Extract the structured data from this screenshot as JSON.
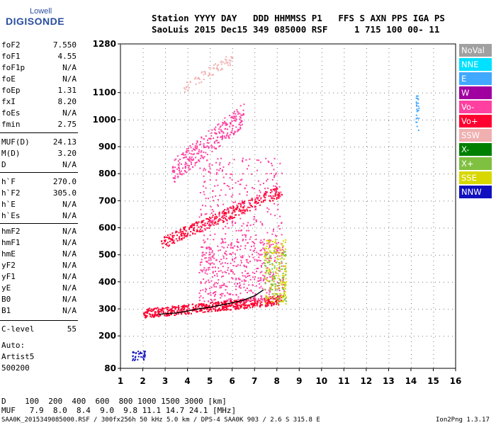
{
  "logo": {
    "top": "Lowell",
    "main": "DIGISONDE"
  },
  "header": {
    "line1": "Station YYYY DAY   DDD HHMMSS P1   FFS S AXN PPS IGA PS",
    "line2": "SaoLuis 2015 Dec15 349 085000 RSF     1 715 100 00- 11"
  },
  "params": [
    {
      "label": "foF2",
      "value": "7.550"
    },
    {
      "label": "foF1",
      "value": "4.55"
    },
    {
      "label": "foF1p",
      "value": "N/A"
    },
    {
      "label": "foE",
      "value": "N/A"
    },
    {
      "label": "foEp",
      "value": "1.31"
    },
    {
      "label": "fxI",
      "value": "8.20"
    },
    {
      "label": "foEs",
      "value": "N/A"
    },
    {
      "label": "fmin",
      "value": "2.75"
    },
    {
      "label": "MUF(D)",
      "value": "24.13"
    },
    {
      "label": "M(D)",
      "value": "3.20"
    },
    {
      "label": "D",
      "value": "N/A"
    },
    {
      "label": "h`F",
      "value": "270.0"
    },
    {
      "label": "h`F2",
      "value": "305.0"
    },
    {
      "label": "h`E",
      "value": "N/A"
    },
    {
      "label": "h`Es",
      "value": "N/A"
    },
    {
      "label": "hmF2",
      "value": "N/A"
    },
    {
      "label": "hmF1",
      "value": "N/A"
    },
    {
      "label": "hmE",
      "value": "N/A"
    },
    {
      "label": "yF2",
      "value": "N/A"
    },
    {
      "label": "yF1",
      "value": "N/A"
    },
    {
      "label": "yE",
      "value": "N/A"
    },
    {
      "label": "B0",
      "value": "N/A"
    },
    {
      "label": "B1",
      "value": "N/A"
    },
    {
      "label": "C-level",
      "value": "55"
    }
  ],
  "tail": {
    "auto": "Auto:",
    "artist": "Artist5",
    "version": "500200"
  },
  "legend": [
    {
      "name": "NoVal",
      "color": "#a0a0a0"
    },
    {
      "name": "NNE",
      "color": "#00e0ff"
    },
    {
      "name": "E",
      "color": "#40a8ff"
    },
    {
      "name": "W",
      "color": "#a000a0"
    },
    {
      "name": "Vo-",
      "color": "#ff40a0"
    },
    {
      "name": "Vo+",
      "color": "#ff0030"
    },
    {
      "name": "SSW",
      "color": "#f0b0b0"
    },
    {
      "name": "X-",
      "color": "#008000"
    },
    {
      "name": "X+",
      "color": "#80c040"
    },
    {
      "name": "SSE",
      "color": "#d8d800"
    },
    {
      "name": "NNW",
      "color": "#1010c0"
    }
  ],
  "bottom": {
    "d_row": "D    100  200  400  600  800 1000 1500 3000 [km]",
    "muf_row": "MUF   7.9  8.0  8.4  9.0  9.8 11.1 14.7 24.1 [MHz]"
  },
  "footer": {
    "left": "SAA0K_2015349085000.RSF / 300fx256h 50 kHz 5.0 km / DPS-4 SAA0K 903 / 2.6 S 315.8 E",
    "right": "Ion2Png 1.3.17"
  },
  "chart_data": {
    "type": "scatter",
    "xlim": [
      1,
      16
    ],
    "ylim": [
      80,
      1280
    ],
    "x_ticks": [
      1,
      2,
      3,
      4,
      5,
      6,
      7,
      8,
      9,
      10,
      11,
      12,
      13,
      14,
      15,
      16
    ],
    "y_ticks": [
      80,
      200,
      300,
      400,
      500,
      600,
      700,
      800,
      900,
      1000,
      1100,
      1280
    ],
    "regions": [
      {
        "name": "F-trace",
        "type": "band",
        "x_from": 2.0,
        "x_to": 8.2,
        "y_from": 285,
        "y_to": 335,
        "y_thickness": 35,
        "color": "#ff0030",
        "density": 600
      },
      {
        "name": "F-spread",
        "type": "rect",
        "x_from": 4.5,
        "x_to": 8.3,
        "y_from": 330,
        "y_to": 560,
        "color": "#ff40a0",
        "density": 500
      },
      {
        "name": "spread-sse",
        "type": "rect",
        "x_from": 7.4,
        "x_to": 8.4,
        "y_from": 320,
        "y_to": 560,
        "color": "#d8d800",
        "density": 160
      },
      {
        "name": "spread-x",
        "type": "rect",
        "x_from": 7.4,
        "x_to": 8.4,
        "y_from": 320,
        "y_to": 520,
        "color": "#80c040",
        "density": 90
      },
      {
        "name": "F-2hop",
        "type": "band",
        "x_from": 2.8,
        "x_to": 8.2,
        "y_from": 545,
        "y_to": 740,
        "y_thickness": 45,
        "color": "#ff0030",
        "density": 350
      },
      {
        "name": "F-2hop-spread",
        "type": "rect",
        "x_from": 4.5,
        "x_to": 8.2,
        "y_from": 560,
        "y_to": 860,
        "color": "#ff40a0",
        "density": 250
      },
      {
        "name": "F-3hop",
        "type": "band",
        "x_from": 3.3,
        "x_to": 6.5,
        "y_from": 810,
        "y_to": 1020,
        "y_thickness": 90,
        "color": "#ff40a0",
        "density": 300
      },
      {
        "name": "F-4hop",
        "type": "band",
        "x_from": 3.8,
        "x_to": 6.0,
        "y_from": 1120,
        "y_to": 1230,
        "y_thickness": 40,
        "color": "#f0b0b0",
        "density": 70
      },
      {
        "name": "low-echo",
        "type": "rect",
        "x_from": 1.5,
        "x_to": 2.1,
        "y_from": 112,
        "y_to": 148,
        "color": "#1010c0",
        "density": 35
      },
      {
        "name": "noise-14",
        "type": "rect",
        "x_from": 14.2,
        "x_to": 14.35,
        "y_from": 960,
        "y_to": 1090,
        "color": "#40a8ff",
        "density": 25
      }
    ],
    "trace": {
      "name": "h`F2 trace",
      "color": "#000000",
      "x": [
        2.7,
        3.5,
        4.0,
        4.5,
        5.0,
        5.5,
        6.0,
        6.5,
        7.0,
        7.4
      ],
      "y": [
        280,
        285,
        292,
        300,
        306,
        314,
        322,
        332,
        348,
        370
      ]
    }
  }
}
